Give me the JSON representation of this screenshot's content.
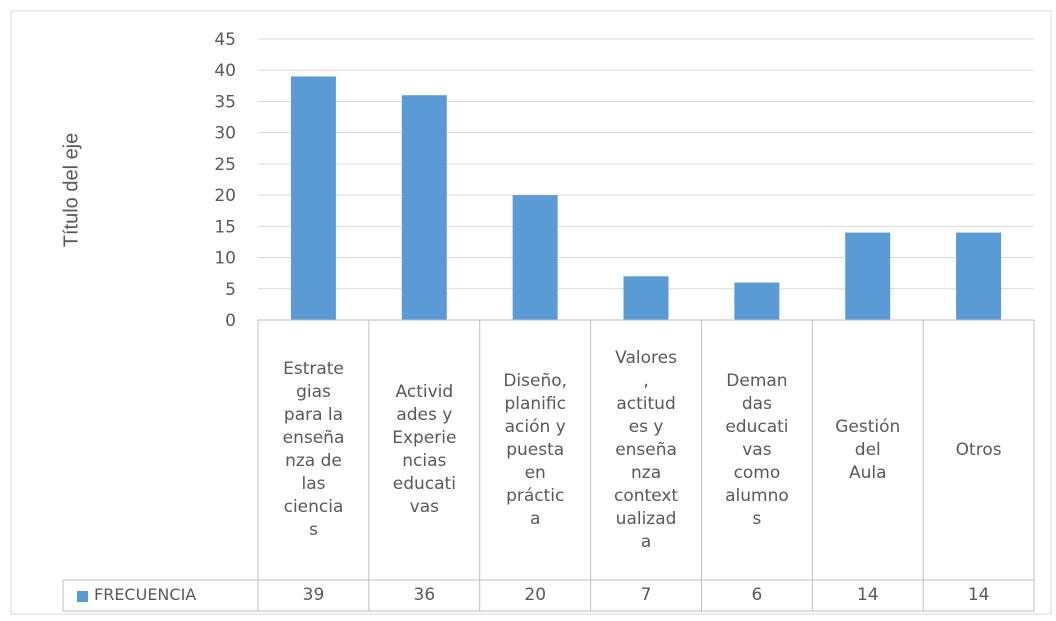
{
  "chart_data": {
    "type": "bar",
    "title": "",
    "ylabel": "Título del eje",
    "xlabel": "",
    "ylim": [
      0,
      45
    ],
    "yticks": [
      0,
      5,
      10,
      15,
      20,
      25,
      30,
      35,
      40,
      45
    ],
    "grid": true,
    "legend": "data-table-left",
    "categories": [
      "Estrate\ngias\npara la\nenseña\nnza de\nlas\nciencia\ns",
      "Activid\nades y\nExperie\nncias\neducati\nvas",
      "Diseño,\nplanific\nación y\npuesta\nen\npráctic\na",
      "Valores\n,\nactitud\nes y\nenseña\nnza\ncontext\nualizad\na",
      "Deman\ndas\neducati\nvas\ncomo\nalumno\ns",
      "Gestión\ndel\nAula",
      "Otros"
    ],
    "series": [
      {
        "name": "FRECUENCIA",
        "color": "#5b9bd5",
        "values": [
          39,
          36,
          20,
          7,
          6,
          14,
          14
        ]
      }
    ]
  }
}
